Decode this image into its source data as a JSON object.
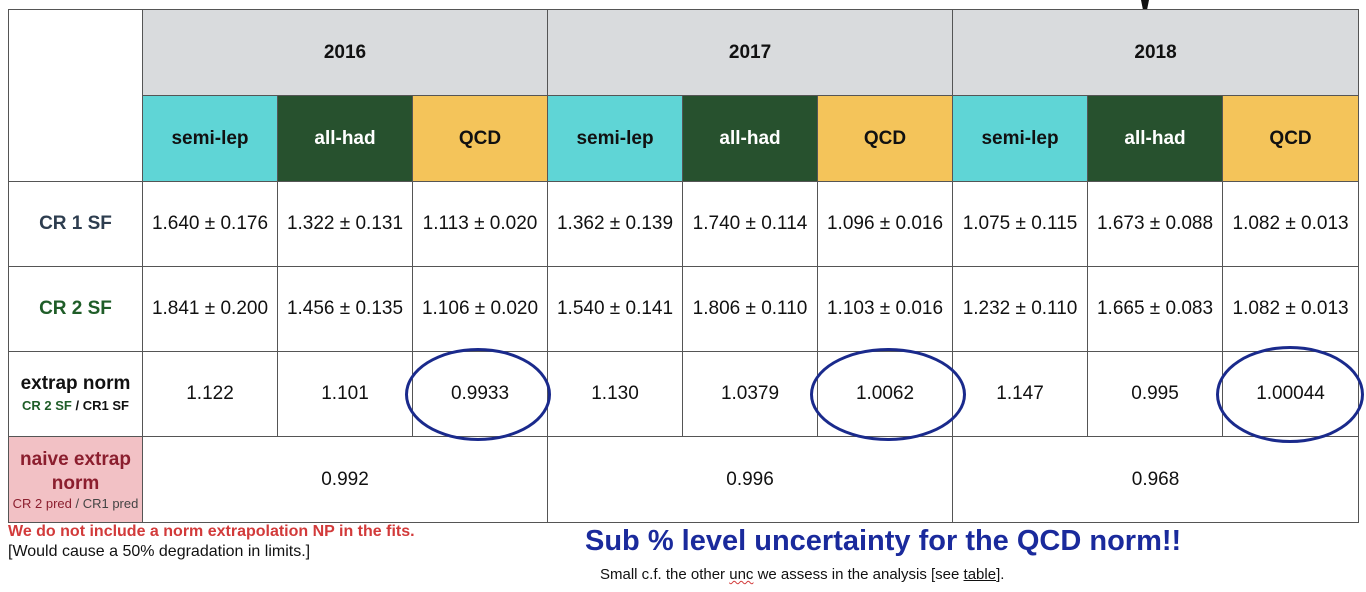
{
  "years": [
    "2016",
    "2017",
    "2018"
  ],
  "channels": [
    "semi-lep",
    "all-had",
    "QCD"
  ],
  "rows": {
    "cr1": {
      "label": "CR 1 SF",
      "values": [
        "1.640 ± 0.176",
        "1.322 ± 0.131",
        "1.113 ± 0.020",
        "1.362 ± 0.139",
        "1.740 ± 0.114",
        "1.096 ± 0.016",
        "1.075 ± 0.115",
        "1.673 ± 0.088",
        "1.082 ± 0.013"
      ]
    },
    "cr2": {
      "label": "CR 2 SF",
      "values": [
        "1.841 ± 0.200",
        "1.456 ± 0.135",
        "1.106 ± 0.020",
        "1.540 ± 0.141",
        "1.806 ± 0.110",
        "1.103 ± 0.016",
        "1.232 ± 0.110",
        "1.665 ± 0.083",
        "1.082 ± 0.013"
      ]
    },
    "extrap": {
      "label": "extrap norm",
      "sub_green": "CR 2 SF",
      "sub_black": " / CR1 SF",
      "values": [
        "1.122",
        "1.101",
        "0.9933",
        "1.130",
        "1.0379",
        "1.0062",
        "1.147",
        "0.995",
        "1.00044"
      ]
    },
    "naive": {
      "label_line1": "naive extrap",
      "label_line2": "norm",
      "sub_a": "CR 2 pred",
      "sub_b": " / CR1 pred",
      "values": [
        "0.992",
        "0.996",
        "0.968"
      ]
    }
  },
  "notes": {
    "red": "We do not include a norm extrapolation NP in the fits.",
    "black": "[Would cause a 50% degradation in limits.]"
  },
  "headline": "Sub % level uncertainty for the QCD norm!!",
  "subline": {
    "pre": "Small c.f. the other ",
    "unc": "unc",
    "mid": " we assess in the analysis [see ",
    "link": "table",
    "post": "]."
  },
  "colors": {
    "semi_lep": "#5fd5d6",
    "all_had": "#27512e",
    "qcd": "#f4c45a",
    "year_header": "#d9dbdd",
    "naive_label_bg": "#f2c1c5",
    "circle": "#1a2a8c",
    "headline": "#1a2a9c",
    "note_red": "#d23a3a"
  }
}
